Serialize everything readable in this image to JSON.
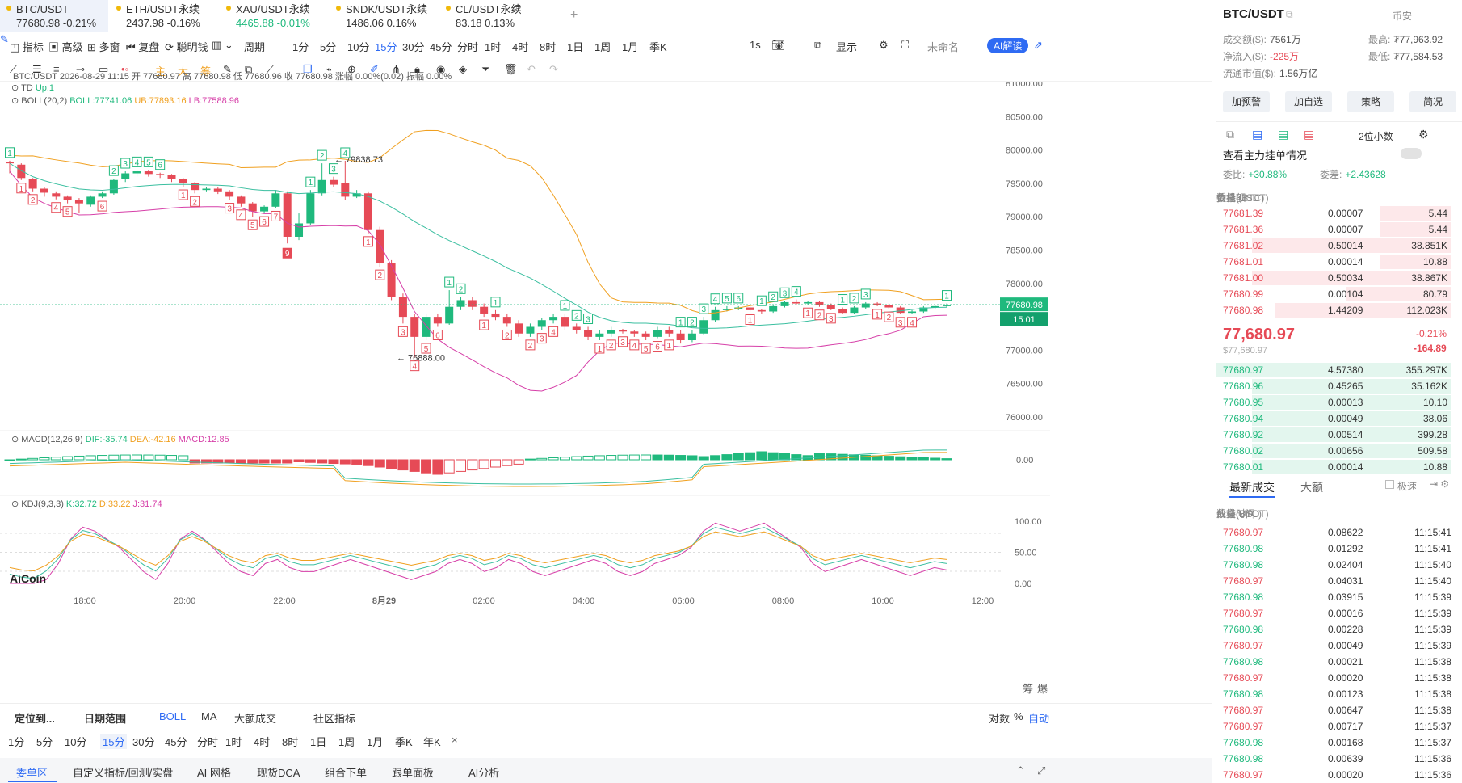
{
  "tickers": [
    {
      "name": "BTC/USDT",
      "price": "77680.98",
      "change": "-0.21%",
      "dir": "neg",
      "active": true
    },
    {
      "name": "ETH/USDT永续",
      "price": "2437.98",
      "change": "-0.16%",
      "dir": "neg"
    },
    {
      "name": "XAU/USDT永续",
      "price": "4465.88",
      "change": "-0.01%",
      "dir": "pos"
    },
    {
      "name": "SNDK/USDT永续",
      "price": "1486.06",
      "change": "0.16%",
      "dir": "neu"
    },
    {
      "name": "CL/USDT永续",
      "price": "83.18",
      "change": "0.13%",
      "dir": "neu"
    }
  ],
  "toolbar": {
    "items": [
      "指标",
      "高级",
      "多窗",
      "复盘",
      "聪明钱",
      "周期",
      "1分",
      "5分",
      "10分",
      "15分",
      "30分",
      "45分",
      "分时",
      "1时",
      "4时",
      "8时",
      "1日",
      "1周",
      "1月",
      "季K"
    ],
    "active": "15分",
    "right": [
      "1s",
      "显示",
      "未命名",
      "AI解读"
    ]
  },
  "toolbar2": {
    "items": [
      "主",
      "大",
      "筹"
    ]
  },
  "legend": {
    "ohlc": "BTC/USDT  2026-08-29 11:15 开 77680.97 高 77680.98 低 77680.96 收 77680.98 涨幅 0.00%(0.02) 振幅 0.00%",
    "td": "TD",
    "td_val": "Up:1",
    "boll": "BOLL(20,2)",
    "boll_mid": "BOLL:77741.06",
    "boll_up": "UB:77893.16",
    "boll_low": "LB:77588.96",
    "macd": "MACD(12,26,9)",
    "dif": "DIF:-35.74",
    "dea": "DEA:-42.16",
    "macd_val": "MACD:12.85",
    "kdj": "KDJ(9,3,3)",
    "k": "K:32.72",
    "d": "D:33.22",
    "j": "J:31.74"
  },
  "chart_data": {
    "type": "candlestick",
    "price_axis": [
      "81000.00",
      "80500.00",
      "80000.00",
      "79500.00",
      "79000.00",
      "78500.00",
      "78000.00",
      "77500.00",
      "77000.00",
      "76500.00",
      "76000.00"
    ],
    "ylim": [
      75900,
      81200
    ],
    "time_axis": [
      "18:00",
      "20:00",
      "22:00",
      "8月29",
      "02:00",
      "04:00",
      "06:00",
      "08:00",
      "10:00",
      "12:00"
    ],
    "annotations": {
      "high": "← 79838.73",
      "low": "← 76888.00"
    },
    "current_price": "77680.98",
    "countdown": "15:01",
    "macd_axis": "0.00",
    "kdj_axis": [
      "100.00",
      "50.00",
      "0.00"
    ],
    "candles": [
      [
        79820,
        79800,
        79650,
        79840
      ],
      [
        79780,
        79580,
        79550,
        79800
      ],
      [
        79560,
        79420,
        79380,
        79580
      ],
      [
        79420,
        79360,
        79300,
        79450
      ],
      [
        79350,
        79300,
        79260,
        79380
      ],
      [
        79300,
        79250,
        79200,
        79320
      ],
      [
        79250,
        79200,
        79050,
        79280
      ],
      [
        79180,
        79300,
        79150,
        79320
      ],
      [
        79300,
        79350,
        79280,
        79380
      ],
      [
        79350,
        79550,
        79330,
        79570
      ],
      [
        79560,
        79650,
        79520,
        79680
      ],
      [
        79650,
        79680,
        79600,
        79700
      ],
      [
        79680,
        79640,
        79600,
        79700
      ],
      [
        79640,
        79620,
        79580,
        79660
      ],
      [
        79620,
        79560,
        79520,
        79640
      ],
      [
        79560,
        79500,
        79450,
        79580
      ],
      [
        79500,
        79400,
        79350,
        79520
      ],
      [
        79400,
        79420,
        79380,
        79450
      ],
      [
        79420,
        79380,
        79340,
        79440
      ],
      [
        79380,
        79300,
        79250,
        79400
      ],
      [
        79300,
        79200,
        79150,
        79320
      ],
      [
        79200,
        79080,
        79000,
        79220
      ],
      [
        79080,
        79150,
        79050,
        79170
      ],
      [
        79150,
        79350,
        79130,
        79400
      ],
      [
        79350,
        78700,
        78600,
        79380
      ],
      [
        78700,
        78900,
        78650,
        79050
      ],
      [
        78900,
        79350,
        78880,
        79400
      ],
      [
        79350,
        79550,
        79320,
        79800
      ],
      [
        79550,
        79480,
        79450,
        79600
      ],
      [
        79500,
        79300,
        79250,
        79838
      ],
      [
        79300,
        79350,
        79280,
        79400
      ],
      [
        79350,
        78800,
        78750,
        79380
      ],
      [
        78800,
        78300,
        78250,
        78850
      ],
      [
        78300,
        77800,
        77750,
        78350
      ],
      [
        77800,
        77500,
        77400,
        77850
      ],
      [
        77500,
        77200,
        76888,
        77550
      ],
      [
        77200,
        77500,
        77150,
        77550
      ],
      [
        77500,
        77400,
        77350,
        77550
      ],
      [
        77400,
        77650,
        77380,
        77900
      ],
      [
        77650,
        77750,
        77600,
        77800
      ],
      [
        77750,
        77650,
        77600,
        77800
      ],
      [
        77650,
        77550,
        77500,
        77700
      ],
      [
        77550,
        77500,
        77450,
        77600
      ],
      [
        77500,
        77400,
        77350,
        77550
      ],
      [
        77400,
        77250,
        77200,
        77450
      ],
      [
        77250,
        77350,
        77200,
        77400
      ],
      [
        77350,
        77450,
        77300,
        77480
      ],
      [
        77450,
        77500,
        77400,
        77550
      ],
      [
        77500,
        77350,
        77300,
        77550
      ],
      [
        77350,
        77300,
        77250,
        77400
      ],
      [
        77300,
        77200,
        77150,
        77350
      ],
      [
        77200,
        77250,
        77150,
        77300
      ],
      [
        77250,
        77300,
        77200,
        77350
      ],
      [
        77300,
        77280,
        77250,
        77320
      ],
      [
        77280,
        77250,
        77200,
        77300
      ],
      [
        77250,
        77200,
        77150,
        77280
      ],
      [
        77200,
        77300,
        77180,
        77350
      ],
      [
        77300,
        77250,
        77200,
        77350
      ],
      [
        77250,
        77150,
        77100,
        77300
      ],
      [
        77150,
        77250,
        77120,
        77300
      ],
      [
        77250,
        77450,
        77230,
        77500
      ],
      [
        77450,
        77600,
        77420,
        77650
      ],
      [
        77600,
        77620,
        77580,
        77660
      ],
      [
        77620,
        77640,
        77600,
        77660
      ],
      [
        77640,
        77600,
        77580,
        77680
      ],
      [
        77600,
        77580,
        77550,
        77620
      ],
      [
        77580,
        77660,
        77560,
        77680
      ],
      [
        77660,
        77720,
        77640,
        77740
      ],
      [
        77720,
        77700,
        77680,
        77760
      ],
      [
        77700,
        77720,
        77680,
        77740
      ],
      [
        77720,
        77680,
        77650,
        77740
      ],
      [
        77680,
        77620,
        77600,
        77700
      ],
      [
        77620,
        77560,
        77540,
        77640
      ],
      [
        77560,
        77640,
        77540,
        77660
      ],
      [
        77640,
        77700,
        77620,
        77720
      ],
      [
        77700,
        77680,
        77660,
        77720
      ],
      [
        77680,
        77640,
        77620,
        77700
      ],
      [
        77640,
        77560,
        77540,
        77660
      ],
      [
        77560,
        77580,
        77540,
        77600
      ],
      [
        77580,
        77640,
        77560,
        77660
      ],
      [
        77640,
        77660,
        77620,
        77680
      ],
      [
        77660,
        77680,
        77640,
        77700
      ]
    ]
  },
  "bottom": {
    "row1": [
      "定位到...",
      "日期范围",
      "BOLL",
      "MA",
      "大额成交",
      "社区指标"
    ],
    "row1_right": [
      "对数",
      "%",
      "自动"
    ],
    "periods": [
      "1分",
      "5分",
      "10分",
      "15分",
      "30分",
      "45分",
      "分时",
      "1时",
      "4时",
      "8时",
      "1日",
      "1周",
      "1月",
      "季K",
      "年K"
    ],
    "active_period": "15分",
    "tabs": [
      "委单区",
      "自定义指标/回测/实盘",
      "AI 网格",
      "现货DCA",
      "组合下单",
      "跟单面板",
      "AI分析"
    ],
    "right_labels": [
      "筹",
      "爆"
    ]
  },
  "right": {
    "pair": "BTC/USDT",
    "exchange": "币安",
    "stats": [
      {
        "label": "成交额($):",
        "value": "7561万"
      },
      {
        "label": "最高:",
        "value": "₮77,963.92"
      },
      {
        "label": "净流入($):",
        "value": "-225万"
      },
      {
        "label": "最低:",
        "value": "₮77,584.53"
      },
      {
        "label": "流通市值($):",
        "value": "1.56万亿"
      }
    ],
    "buttons": [
      "加预警",
      "加自选",
      "策略",
      "简况"
    ],
    "precision": "2位小数",
    "main_orders": "查看主力挂单情况",
    "weibi_label": "委比:",
    "weibi": "+30.88%",
    "weicha_label": "委差:",
    "weicha": "+2.43628",
    "ob_headers": [
      "价格(USDT)",
      "数量 (BTC)",
      "委托额"
    ],
    "asks": [
      [
        "77681.39",
        "0.00007",
        "5.44"
      ],
      [
        "77681.36",
        "0.00007",
        "5.44"
      ],
      [
        "77681.02",
        "0.50014",
        "38.851K"
      ],
      [
        "77681.01",
        "0.00014",
        "10.88"
      ],
      [
        "77681.00",
        "0.50034",
        "38.867K"
      ],
      [
        "77680.99",
        "0.00104",
        "80.79"
      ],
      [
        "77680.98",
        "1.44209",
        "112.023K"
      ]
    ],
    "ask_fill": [
      0.3,
      0.3,
      0.85,
      0.3,
      0.85,
      0.45,
      0.75
    ],
    "mid_price": "77,680.97",
    "mid_sub": "$77,680.97",
    "mid_change": "-0.21%",
    "mid_delta": "-164.89",
    "bids": [
      [
        "77680.97",
        "4.57380",
        "355.297K"
      ],
      [
        "77680.96",
        "0.45265",
        "35.162K"
      ],
      [
        "77680.95",
        "0.00013",
        "10.10"
      ],
      [
        "77680.94",
        "0.00049",
        "38.06"
      ],
      [
        "77680.92",
        "0.00514",
        "399.28"
      ],
      [
        "77680.02",
        "0.00656",
        "509.58"
      ],
      [
        "77680.01",
        "0.00014",
        "10.88"
      ]
    ],
    "bid_fill": [
      1.0,
      0.85,
      0.85,
      0.85,
      0.85,
      0.85,
      0.85
    ],
    "trade_tabs": [
      "最新成交",
      "大额"
    ],
    "fast_label": "极速",
    "trade_headers": [
      "价格(USDT)",
      "数量(BTC)",
      "成交时间"
    ],
    "trades": [
      [
        "77680.97",
        "0.08622",
        "11:15:41",
        "neg"
      ],
      [
        "77680.98",
        "0.01292",
        "11:15:41",
        "pos"
      ],
      [
        "77680.98",
        "0.02404",
        "11:15:40",
        "pos"
      ],
      [
        "77680.97",
        "0.04031",
        "11:15:40",
        "neg"
      ],
      [
        "77680.98",
        "0.03915",
        "11:15:39",
        "pos"
      ],
      [
        "77680.97",
        "0.00016",
        "11:15:39",
        "neg"
      ],
      [
        "77680.98",
        "0.00228",
        "11:15:39",
        "pos"
      ],
      [
        "77680.97",
        "0.00049",
        "11:15:39",
        "neg"
      ],
      [
        "77680.98",
        "0.00021",
        "11:15:38",
        "pos"
      ],
      [
        "77680.97",
        "0.00020",
        "11:15:38",
        "neg"
      ],
      [
        "77680.98",
        "0.00123",
        "11:15:38",
        "pos"
      ],
      [
        "77680.97",
        "0.00647",
        "11:15:38",
        "neg"
      ],
      [
        "77680.97",
        "0.00717",
        "11:15:37",
        "neg"
      ],
      [
        "77680.98",
        "0.00168",
        "11:15:37",
        "pos"
      ],
      [
        "77680.98",
        "0.00639",
        "11:15:36",
        "pos"
      ],
      [
        "77680.97",
        "0.00020",
        "11:15:36",
        "neg"
      ]
    ]
  }
}
